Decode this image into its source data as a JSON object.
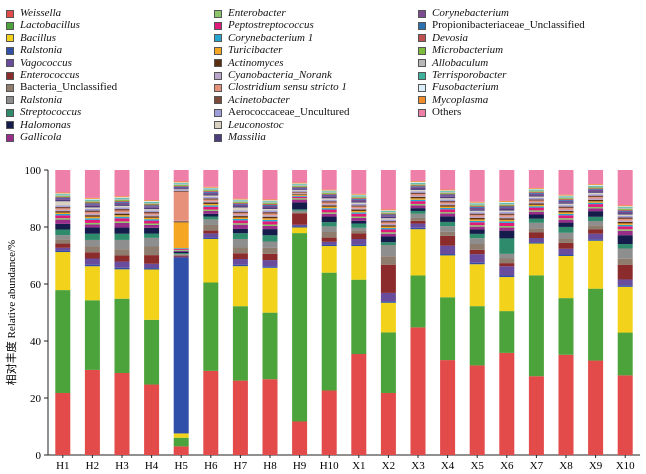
{
  "chart_data": {
    "type": "bar",
    "stacked": true,
    "ylabel": "相对丰度 Relative abundance/%",
    "ylim": [
      0,
      100
    ],
    "yticks": [
      0,
      20,
      40,
      60,
      80,
      100
    ],
    "categories": [
      "H1",
      "H2",
      "H3",
      "H4",
      "H5",
      "H6",
      "H7",
      "H8",
      "H9",
      "H10",
      "X1",
      "X2",
      "X3",
      "X4",
      "X5",
      "X6",
      "X7",
      "X8",
      "X9",
      "X10"
    ],
    "legend": [
      {
        "name": "Weissella",
        "italic": true,
        "color": "#E34A4A"
      },
      {
        "name": "Lactobacillus",
        "italic": true,
        "color": "#4DA33B"
      },
      {
        "name": "Bacillus",
        "italic": true,
        "color": "#F2D21A"
      },
      {
        "name": "Ralstonia",
        "italic": true,
        "color": "#2F4FA8"
      },
      {
        "name": "Vagococcus",
        "italic": true,
        "color": "#6A4C9C"
      },
      {
        "name": "Enterococcus",
        "italic": true,
        "color": "#8B2B2B"
      },
      {
        "name": "Bacteria_Unclassified",
        "italic": false,
        "color": "#8E7C6E"
      },
      {
        "name": "Ralstonia",
        "italic": true,
        "color": "#8E8E8E"
      },
      {
        "name": "Streptococcus",
        "italic": true,
        "color": "#2E8B6B"
      },
      {
        "name": "Halomonas",
        "italic": true,
        "color": "#151B4A"
      },
      {
        "name": "Gallicola",
        "italic": true,
        "color": "#9A2C8A"
      },
      {
        "name": "Enterobacter",
        "italic": true,
        "color": "#8CC46A"
      },
      {
        "name": "Peptostreptococcus",
        "italic": true,
        "color": "#E01A7A"
      },
      {
        "name": "Corynebacterium 1",
        "italic": true,
        "color": "#26A6CE"
      },
      {
        "name": "Turicibacter",
        "italic": true,
        "color": "#F5A623"
      },
      {
        "name": "Actinomyces",
        "italic": true,
        "color": "#5A2E0E"
      },
      {
        "name": "Cyanobacteria_Norank",
        "italic": true,
        "color": "#B9A6C8"
      },
      {
        "name": "Clostridium sensu stricto 1",
        "italic": true,
        "color": "#E7907A"
      },
      {
        "name": "Acinetobacter",
        "italic": true,
        "color": "#7A4A3A"
      },
      {
        "name": "Aerococcaceae_Uncultured",
        "italic": false,
        "color": "#9E9EDA"
      },
      {
        "name": "Leuconostoc",
        "italic": true,
        "color": "#D8D0C0"
      },
      {
        "name": "Massilia",
        "italic": true,
        "color": "#4B3E7A"
      },
      {
        "name": "Corynebacterium",
        "italic": true,
        "color": "#7C4A8E"
      },
      {
        "name": "Propionibacteriaceae_Unclassified",
        "italic": false,
        "color": "#2A6FB0"
      },
      {
        "name": "Devosia",
        "italic": true,
        "color": "#C0504D"
      },
      {
        "name": "Microbacterium",
        "italic": true,
        "color": "#7DBB3B"
      },
      {
        "name": "Allobaculum",
        "italic": true,
        "color": "#B8B8B8"
      },
      {
        "name": "Terrisporobacter",
        "italic": true,
        "color": "#3DB39E"
      },
      {
        "name": "Fusobacterium",
        "italic": true,
        "color": "#D9EEF8"
      },
      {
        "name": "Mycoplasma",
        "italic": true,
        "color": "#F28C28"
      },
      {
        "name": "Others",
        "italic": false,
        "color": "#EE7FA8"
      }
    ],
    "series": [
      {
        "name": "Weissella",
        "values": [
          22,
          27.5,
          26.5,
          24.5,
          3,
          30,
          26,
          24.5,
          12,
          23,
          36,
          22,
          45.5,
          34,
          31,
          33,
          28.5,
          34.5,
          33.5,
          27
        ]
      },
      {
        "name": "Lactobacillus",
        "values": [
          36.5,
          22.5,
          24,
          22.5,
          3,
          31.5,
          26,
          21.5,
          67.5,
          42,
          26.5,
          21.5,
          18.5,
          22.5,
          20.5,
          13.5,
          36.5,
          19.5,
          25.5,
          14.5
        ]
      },
      {
        "name": "Bacillus",
        "values": [
          13.5,
          11,
          9.5,
          17.5,
          1.5,
          15.5,
          14,
          14.5,
          2,
          9.5,
          12,
          10.5,
          16.5,
          15,
          14.5,
          11,
          11.5,
          14.5,
          17,
          15.5
        ]
      },
      {
        "name": "Ralstonia",
        "values": [
          0.5,
          0.5,
          0.5,
          0.5,
          61,
          0.5,
          0.5,
          0.5,
          0.5,
          0.5,
          0.5,
          0.5,
          0.5,
          0.5,
          0.5,
          0.5,
          0.5,
          0.5,
          0.5,
          0.5
        ]
      },
      {
        "name": "Vagococcus",
        "values": [
          1,
          2,
          2,
          1.5,
          0.5,
          1.5,
          2,
          2,
          0.5,
          1,
          2,
          3,
          1.5,
          3,
          3,
          3,
          1.5,
          2,
          2,
          2
        ]
      },
      {
        "name": "Enterococcus",
        "values": [
          1.5,
          2,
          2,
          3,
          0.3,
          1,
          2,
          2,
          4,
          1.5,
          2,
          10,
          1,
          3.5,
          1.5,
          1,
          2,
          2,
          1.5,
          5
        ]
      },
      {
        "name": "Bacteria_Unclassified",
        "values": [
          1.5,
          2,
          2,
          3,
          0.3,
          2,
          2,
          2,
          0.5,
          2,
          1,
          3,
          1,
          1.5,
          2,
          1.5,
          1.5,
          1.5,
          1.5,
          2
        ]
      },
      {
        "name": "Ralstonia",
        "values": [
          1.5,
          2,
          3,
          3,
          0.3,
          2,
          3,
          2,
          0.5,
          2,
          1,
          4,
          1.5,
          2,
          2,
          1.5,
          2,
          2,
          1.5,
          3.5
        ]
      },
      {
        "name": "Streptococcus",
        "values": [
          2,
          2,
          2,
          1.5,
          0.3,
          1,
          2,
          2,
          0.5,
          1.5,
          1.5,
          1,
          1,
          1.5,
          1.5,
          5,
          1.5,
          2,
          1.5,
          1.5
        ]
      },
      {
        "name": "Halomonas",
        "values": [
          2,
          2,
          2,
          2,
          0.5,
          1,
          1.5,
          2,
          2.5,
          2,
          1,
          2,
          1,
          2,
          1.5,
          2.5,
          1.5,
          1.5,
          2,
          3
        ]
      },
      {
        "name": "Gallicola",
        "values": [
          1.5,
          1,
          1.5,
          1,
          0.3,
          1,
          1.5,
          1,
          1,
          1,
          1,
          1,
          1,
          1,
          1,
          1,
          1,
          1,
          1,
          1.5
        ]
      },
      {
        "name": "Enterobacter",
        "values": [
          0.5,
          0.5,
          0.5,
          0.5,
          0.3,
          0.5,
          0.5,
          0.5,
          0.5,
          0.5,
          0.5,
          0.5,
          0.5,
          0.5,
          0.5,
          0.5,
          0.5,
          0.5,
          0.5,
          0.5
        ]
      },
      {
        "name": "Peptostreptococcus",
        "values": [
          1,
          1,
          1,
          1,
          0.3,
          1,
          1,
          1,
          0.5,
          1,
          1,
          1,
          1,
          1,
          1,
          1,
          1,
          1,
          1,
          1
        ]
      },
      {
        "name": "Corynebacterium 1",
        "values": [
          0.5,
          0.5,
          0.5,
          0.5,
          0.3,
          0.5,
          0.5,
          0.5,
          0.3,
          0.5,
          0.5,
          0.5,
          0.5,
          0.5,
          0.5,
          0.5,
          0.5,
          0.5,
          0.5,
          0.5
        ]
      },
      {
        "name": "Turicibacter",
        "values": [
          0.5,
          0.5,
          0.5,
          0.5,
          9,
          0.5,
          0.5,
          0.5,
          0.3,
          0.5,
          0.5,
          0.5,
          0.5,
          0.5,
          0.5,
          0.5,
          0.5,
          0.5,
          0.5,
          0.5
        ]
      },
      {
        "name": "Actinomyces",
        "values": [
          0.5,
          0.5,
          0.5,
          0.5,
          0.3,
          0.5,
          0.5,
          0.5,
          0.3,
          0.5,
          0.5,
          0.5,
          0.5,
          0.5,
          0.5,
          0.5,
          0.5,
          0.5,
          0.5,
          0.5
        ]
      },
      {
        "name": "Cyanobacteria_Norank",
        "values": [
          0.5,
          0.5,
          0.5,
          0.5,
          0.3,
          0.5,
          0.5,
          0.5,
          0.3,
          0.5,
          0.5,
          0.5,
          0.5,
          0.5,
          0.5,
          0.5,
          0.5,
          0.5,
          0.5,
          0.5
        ]
      },
      {
        "name": "Clostridium sensu stricto 1",
        "values": [
          0.5,
          0.5,
          0.5,
          0.5,
          10,
          0.5,
          0.5,
          0.5,
          0.3,
          0.5,
          0.5,
          0.5,
          0.5,
          0.5,
          0.5,
          0.5,
          0.5,
          0.5,
          0.5,
          0.5
        ]
      },
      {
        "name": "Acinetobacter",
        "values": [
          0.5,
          0.5,
          0.5,
          0.5,
          0.3,
          0.5,
          0.5,
          0.5,
          0.3,
          0.5,
          0.5,
          0.5,
          0.5,
          0.5,
          0.5,
          0.5,
          0.5,
          0.5,
          0.5,
          0.5
        ]
      },
      {
        "name": "Aerococcaceae_Uncultured",
        "values": [
          0.5,
          0.5,
          0.5,
          0.5,
          0.3,
          0.5,
          0.5,
          0.5,
          0.3,
          0.5,
          0.5,
          0.5,
          0.5,
          0.5,
          0.5,
          0.5,
          0.5,
          0.5,
          0.5,
          0.5
        ]
      },
      {
        "name": "Leuconostoc",
        "values": [
          1.5,
          0.5,
          0.5,
          0.5,
          0.3,
          0.5,
          1,
          0.5,
          0.3,
          0.5,
          0.5,
          0.5,
          0.5,
          0.5,
          0.5,
          0.5,
          0.5,
          0.5,
          0.5,
          0.5
        ]
      },
      {
        "name": "Massilia",
        "values": [
          0.5,
          0.5,
          0.5,
          0.5,
          0.3,
          0.5,
          0.5,
          0.5,
          0.3,
          0.5,
          0.5,
          0.5,
          0.5,
          0.5,
          0.5,
          0.5,
          0.5,
          0.5,
          0.5,
          0.5
        ]
      },
      {
        "name": "Corynebacterium",
        "values": [
          0.5,
          0.5,
          0.5,
          0.5,
          0.3,
          0.5,
          0.5,
          0.5,
          0.3,
          0.5,
          0.5,
          0.5,
          0.5,
          0.5,
          0.5,
          0.5,
          0.5,
          0.5,
          0.5,
          0.5
        ]
      },
      {
        "name": "Propionibacteriaceae_Unclassified",
        "values": [
          0.3,
          0.3,
          0.3,
          0.3,
          0.3,
          0.3,
          0.3,
          0.3,
          0.3,
          0.3,
          0.3,
          0.3,
          0.3,
          0.3,
          0.3,
          0.3,
          0.3,
          0.3,
          0.3,
          0.3
        ]
      },
      {
        "name": "Devosia",
        "values": [
          0.3,
          0.3,
          0.3,
          0.3,
          0.3,
          0.3,
          0.3,
          0.3,
          0.3,
          0.3,
          0.3,
          0.3,
          0.3,
          0.3,
          0.3,
          0.3,
          0.3,
          0.3,
          0.3,
          0.3
        ]
      },
      {
        "name": "Microbacterium",
        "values": [
          0.3,
          0.3,
          0.3,
          0.3,
          0.3,
          0.3,
          0.3,
          0.3,
          0.3,
          0.3,
          0.3,
          0.3,
          0.3,
          0.3,
          0.3,
          0.3,
          0.3,
          0.3,
          0.3,
          0.3
        ]
      },
      {
        "name": "Allobaculum",
        "values": [
          0.3,
          0.3,
          0.3,
          0.3,
          0.3,
          0.3,
          0.3,
          0.3,
          0.3,
          0.3,
          0.3,
          0.3,
          0.3,
          0.3,
          0.3,
          0.3,
          0.3,
          0.3,
          0.3,
          0.3
        ]
      },
      {
        "name": "Terrisporobacter",
        "values": [
          0.3,
          0.3,
          0.3,
          0.3,
          0.3,
          0.3,
          0.3,
          0.3,
          0.3,
          0.3,
          0.3,
          0.3,
          0.3,
          0.3,
          0.3,
          0.3,
          0.3,
          0.3,
          0.3,
          0.3
        ]
      },
      {
        "name": "Fusobacterium",
        "values": [
          0.3,
          0.3,
          0.3,
          0.3,
          0.3,
          0.3,
          0.3,
          0.3,
          0.3,
          0.3,
          0.3,
          0.3,
          0.3,
          0.3,
          0.3,
          0.3,
          0.3,
          0.3,
          0.3,
          0.3
        ]
      },
      {
        "name": "Mycoplasma",
        "values": [
          0.3,
          0.3,
          0.3,
          0.3,
          0.3,
          0.3,
          0.3,
          0.3,
          0.3,
          0.3,
          0.3,
          0.3,
          0.3,
          0.3,
          0.3,
          0.3,
          0.3,
          0.3,
          0.3,
          0.3
        ]
      },
      {
        "name": "Others",
        "values": [
          8,
          9,
          8.5,
          10.5,
          4,
          6,
          10,
          9.5,
          4.5,
          7,
          8.5,
          14,
          4,
          7,
          11,
          10,
          6.5,
          8.5,
          5,
          12
        ]
      }
    ]
  }
}
